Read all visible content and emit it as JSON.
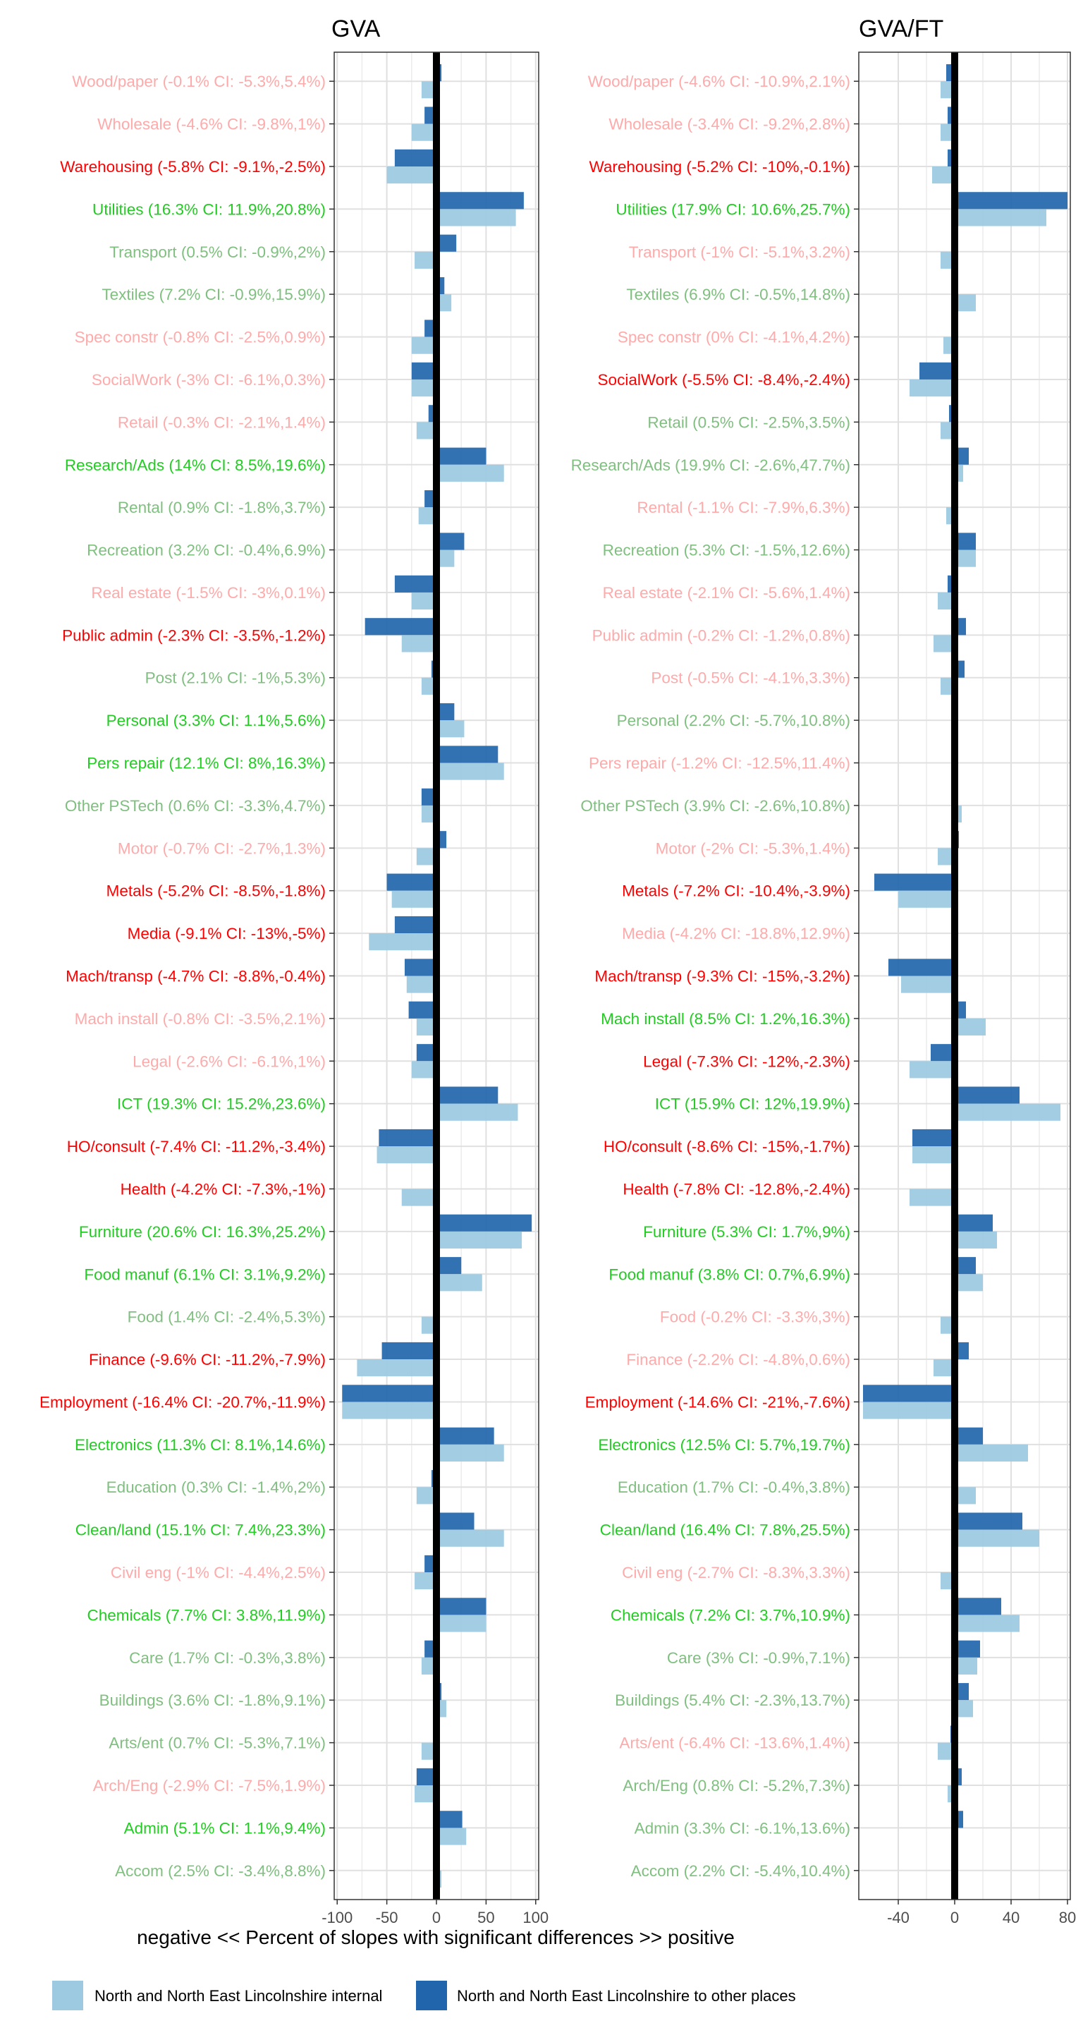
{
  "chart_data": {
    "type": "bar",
    "orientation": "horizontal",
    "xlabel": "negative << Percent of slopes with significant differences >> positive",
    "legend": {
      "placement": "bottom",
      "entries": [
        {
          "name": "North and North East Lincolnshire internal",
          "color": "#9ecae1"
        },
        {
          "name": "North and North East Lincolnshire to other places",
          "color": "#2166ac"
        }
      ]
    },
    "colors": {
      "internal": "#9ecae1",
      "to_other": "#2166ac",
      "pos_sig": "#22cc22",
      "pos_weak": "#7fbf7f",
      "neg_sig": "#ff0000",
      "neg_weak": "#ffaaaa"
    },
    "panels": [
      {
        "title": "GVA",
        "xlim": [
          -103,
          103
        ],
        "ticks": [
          -100,
          -50,
          0,
          50,
          100
        ],
        "tick_labels": [
          "-100",
          "-50",
          "0",
          "50",
          "100"
        ],
        "categories": [
          "Wood/paper",
          "Wholesale",
          "Warehousing",
          "Utilities",
          "Transport",
          "Textiles",
          "Spec constr",
          "SocialWork",
          "Retail",
          "Research/Ads",
          "Rental",
          "Recreation",
          "Real estate",
          "Public admin",
          "Post",
          "Personal",
          "Pers repair",
          "Other PSTech",
          "Motor",
          "Metals",
          "Media",
          "Mach/transp",
          "Mach install",
          "Legal",
          "ICT",
          "HO/consult",
          "Health",
          "Furniture",
          "Food manuf",
          "Food",
          "Finance",
          "Employment",
          "Electronics",
          "Education",
          "Clean/land",
          "Civil eng",
          "Chemicals",
          "Care",
          "Buildings",
          "Arts/ent",
          "Arch/Eng",
          "Admin",
          "Accom"
        ],
        "labels": [
          "Wood/paper (-0.1% CI: -5.3%,5.4%)",
          "Wholesale (-4.6% CI: -9.8%,1%)",
          "Warehousing (-5.8% CI: -9.1%,-2.5%)",
          "Utilities (16.3% CI: 11.9%,20.8%)",
          "Transport (0.5% CI: -0.9%,2%)",
          "Textiles (7.2% CI: -0.9%,15.9%)",
          "Spec constr (-0.8% CI: -2.5%,0.9%)",
          "SocialWork (-3% CI: -6.1%,0.3%)",
          "Retail (-0.3% CI: -2.1%,1.4%)",
          "Research/Ads (14% CI: 8.5%,19.6%)",
          "Rental (0.9% CI: -1.8%,3.7%)",
          "Recreation (3.2% CI: -0.4%,6.9%)",
          "Real estate (-1.5% CI: -3%,0.1%)",
          "Public admin (-2.3% CI: -3.5%,-1.2%)",
          "Post (2.1% CI: -1%,5.3%)",
          "Personal (3.3% CI: 1.1%,5.6%)",
          "Pers repair (12.1% CI: 8%,16.3%)",
          "Other PSTech (0.6% CI: -3.3%,4.7%)",
          "Motor (-0.7% CI: -2.7%,1.3%)",
          "Metals (-5.2% CI: -8.5%,-1.8%)",
          "Media (-9.1% CI: -13%,-5%)",
          "Mach/transp (-4.7% CI: -8.8%,-0.4%)",
          "Mach install (-0.8% CI: -3.5%,2.1%)",
          "Legal (-2.6% CI: -6.1%,1%)",
          "ICT (19.3% CI: 15.2%,23.6%)",
          "HO/consult (-7.4% CI: -11.2%,-3.4%)",
          "Health (-4.2% CI: -7.3%,-1%)",
          "Furniture (20.6% CI: 16.3%,25.2%)",
          "Food manuf (6.1% CI: 3.1%,9.2%)",
          "Food (1.4% CI: -2.4%,5.3%)",
          "Finance (-9.6% CI: -11.2%,-7.9%)",
          "Employment (-16.4% CI: -20.7%,-11.9%)",
          "Electronics (11.3% CI: 8.1%,14.6%)",
          "Education (0.3% CI: -1.4%,2%)",
          "Clean/land (15.1% CI: 7.4%,23.3%)",
          "Civil eng (-1% CI: -4.4%,2.5%)",
          "Chemicals (7.7% CI: 3.8%,11.9%)",
          "Care (1.7% CI: -0.3%,3.8%)",
          "Buildings (3.6% CI: -1.8%,9.1%)",
          "Arts/ent (0.7% CI: -5.3%,7.1%)",
          "Arch/Eng (-2.9% CI: -7.5%,1.9%)",
          "Admin (5.1% CI: 1.1%,9.4%)",
          "Accom (2.5% CI: -3.4%,8.8%)"
        ],
        "label_status": [
          "neg_weak",
          "neg_weak",
          "neg_sig",
          "pos_sig",
          "pos_weak",
          "pos_weak",
          "neg_weak",
          "neg_weak",
          "neg_weak",
          "pos_sig",
          "pos_weak",
          "pos_weak",
          "neg_weak",
          "neg_sig",
          "pos_weak",
          "pos_sig",
          "pos_sig",
          "pos_weak",
          "neg_weak",
          "neg_sig",
          "neg_sig",
          "neg_sig",
          "neg_weak",
          "neg_weak",
          "pos_sig",
          "neg_sig",
          "neg_sig",
          "pos_sig",
          "pos_sig",
          "pos_weak",
          "neg_sig",
          "neg_sig",
          "pos_sig",
          "pos_weak",
          "pos_sig",
          "neg_weak",
          "pos_sig",
          "pos_weak",
          "pos_weak",
          "pos_weak",
          "neg_weak",
          "pos_sig",
          "pos_weak"
        ],
        "series": [
          {
            "name": "North and North East Lincolnshire to other places",
            "values": [
              5,
              -12,
              -42,
              88,
              20,
              8,
              -12,
              -25,
              -8,
              50,
              -12,
              28,
              -42,
              -72,
              -5,
              18,
              62,
              -15,
              10,
              -50,
              -42,
              -32,
              -28,
              -20,
              62,
              -58,
              0,
              96,
              25,
              2,
              -55,
              -95,
              58,
              -5,
              38,
              -12,
              50,
              -12,
              5,
              0,
              -20,
              26,
              2
            ]
          },
          {
            "name": "North and North East Lincolnshire internal",
            "values": [
              -15,
              -25,
              -50,
              80,
              -22,
              15,
              -25,
              -25,
              -20,
              68,
              -18,
              18,
              -25,
              -35,
              -15,
              28,
              68,
              -15,
              -20,
              -45,
              -68,
              -30,
              -20,
              -25,
              82,
              -60,
              -35,
              86,
              46,
              -15,
              -80,
              -95,
              68,
              -20,
              68,
              -22,
              50,
              -15,
              10,
              -15,
              -22,
              30,
              5
            ]
          }
        ]
      },
      {
        "title": "GVA/FT",
        "xlim": [
          -68,
          82
        ],
        "ticks": [
          -40,
          0,
          40,
          80
        ],
        "tick_labels": [
          "-40",
          "0",
          "40",
          "80"
        ],
        "categories": [
          "Wood/paper",
          "Wholesale",
          "Warehousing",
          "Utilities",
          "Transport",
          "Textiles",
          "Spec constr",
          "SocialWork",
          "Retail",
          "Research/Ads",
          "Rental",
          "Recreation",
          "Real estate",
          "Public admin",
          "Post",
          "Personal",
          "Pers repair",
          "Other PSTech",
          "Motor",
          "Metals",
          "Media",
          "Mach/transp",
          "Mach install",
          "Legal",
          "ICT",
          "HO/consult",
          "Health",
          "Furniture",
          "Food manuf",
          "Food",
          "Finance",
          "Employment",
          "Electronics",
          "Education",
          "Clean/land",
          "Civil eng",
          "Chemicals",
          "Care",
          "Buildings",
          "Arts/ent",
          "Arch/Eng",
          "Admin",
          "Accom"
        ],
        "labels": [
          "Wood/paper (-4.6% CI: -10.9%,2.1%)",
          "Wholesale (-3.4% CI: -9.2%,2.8%)",
          "Warehousing (-5.2% CI: -10%,-0.1%)",
          "Utilities (17.9% CI: 10.6%,25.7%)",
          "Transport (-1% CI: -5.1%,3.2%)",
          "Textiles (6.9% CI: -0.5%,14.8%)",
          "Spec constr (0% CI: -4.1%,4.2%)",
          "SocialWork (-5.5% CI: -8.4%,-2.4%)",
          "Retail (0.5% CI: -2.5%,3.5%)",
          "Research/Ads (19.9% CI: -2.6%,47.7%)",
          "Rental (-1.1% CI: -7.9%,6.3%)",
          "Recreation (5.3% CI: -1.5%,12.6%)",
          "Real estate (-2.1% CI: -5.6%,1.4%)",
          "Public admin (-0.2% CI: -1.2%,0.8%)",
          "Post (-0.5% CI: -4.1%,3.3%)",
          "Personal (2.2% CI: -5.7%,10.8%)",
          "Pers repair (-1.2% CI: -12.5%,11.4%)",
          "Other PSTech (3.9% CI: -2.6%,10.8%)",
          "Motor (-2% CI: -5.3%,1.4%)",
          "Metals (-7.2% CI: -10.4%,-3.9%)",
          "Media (-4.2% CI: -18.8%,12.9%)",
          "Mach/transp (-9.3% CI: -15%,-3.2%)",
          "Mach install (8.5% CI: 1.2%,16.3%)",
          "Legal (-7.3% CI: -12%,-2.3%)",
          "ICT (15.9% CI: 12%,19.9%)",
          "HO/consult (-8.6% CI: -15%,-1.7%)",
          "Health (-7.8% CI: -12.8%,-2.4%)",
          "Furniture (5.3% CI: 1.7%,9%)",
          "Food manuf (3.8% CI: 0.7%,6.9%)",
          "Food (-0.2% CI: -3.3%,3%)",
          "Finance (-2.2% CI: -4.8%,0.6%)",
          "Employment (-14.6% CI: -21%,-7.6%)",
          "Electronics (12.5% CI: 5.7%,19.7%)",
          "Education (1.7% CI: -0.4%,3.8%)",
          "Clean/land (16.4% CI: 7.8%,25.5%)",
          "Civil eng (-2.7% CI: -8.3%,3.3%)",
          "Chemicals (7.2% CI: 3.7%,10.9%)",
          "Care (3% CI: -0.9%,7.1%)",
          "Buildings (5.4% CI: -2.3%,13.7%)",
          "Arts/ent (-6.4% CI: -13.6%,1.4%)",
          "Arch/Eng (0.8% CI: -5.2%,7.3%)",
          "Admin (3.3% CI: -6.1%,13.6%)",
          "Accom (2.2% CI: -5.4%,10.4%)"
        ],
        "label_status": [
          "neg_weak",
          "neg_weak",
          "neg_sig",
          "pos_sig",
          "neg_weak",
          "pos_weak",
          "neg_weak",
          "neg_sig",
          "pos_weak",
          "pos_weak",
          "neg_weak",
          "pos_weak",
          "neg_weak",
          "neg_weak",
          "neg_weak",
          "pos_weak",
          "neg_weak",
          "pos_weak",
          "neg_weak",
          "neg_sig",
          "neg_weak",
          "neg_sig",
          "pos_sig",
          "neg_sig",
          "pos_sig",
          "neg_sig",
          "neg_sig",
          "pos_sig",
          "pos_sig",
          "neg_weak",
          "neg_weak",
          "neg_sig",
          "pos_sig",
          "pos_weak",
          "pos_sig",
          "neg_weak",
          "pos_sig",
          "pos_weak",
          "pos_weak",
          "neg_weak",
          "pos_weak",
          "pos_weak",
          "pos_weak"
        ],
        "series": [
          {
            "name": "North and North East Lincolnshire to other places",
            "values": [
              -6,
              -5,
              -5,
              80,
              0,
              0,
              0,
              -25,
              -4,
              10,
              0,
              15,
              -5,
              8,
              7,
              0,
              0,
              0,
              3,
              -57,
              0,
              -47,
              8,
              -17,
              46,
              -30,
              0,
              27,
              15,
              0,
              10,
              -65,
              20,
              0,
              48,
              0,
              33,
              18,
              10,
              -3,
              5,
              6,
              2
            ]
          },
          {
            "name": "North and North East Lincolnshire internal",
            "values": [
              -10,
              -10,
              -16,
              65,
              -10,
              15,
              -8,
              -32,
              -10,
              6,
              -6,
              15,
              -12,
              -15,
              -10,
              0,
              0,
              5,
              -12,
              -40,
              0,
              -38,
              22,
              -32,
              75,
              -30,
              -32,
              30,
              20,
              -10,
              -15,
              -65,
              52,
              15,
              60,
              -10,
              46,
              16,
              13,
              -12,
              -5,
              0,
              0
            ]
          }
        ]
      }
    ]
  }
}
